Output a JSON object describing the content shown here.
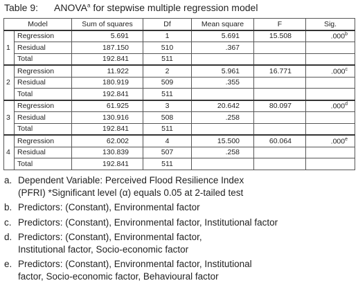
{
  "title": {
    "label": "Table 9:",
    "main": "ANOVA",
    "sup": "a",
    "rest": " for stepwise multiple regression model"
  },
  "table": {
    "header": [
      "Model",
      "Sum of squares",
      "Df",
      "Mean square",
      "F",
      "Sig."
    ],
    "models": [
      {
        "number": "1",
        "rows": [
          {
            "name": "Regression",
            "ss": "5.691",
            "df": "1",
            "ms": "5.691",
            "f": "15.508",
            "sig": ".000",
            "sig_note": "b"
          },
          {
            "name": "Residual",
            "ss": "187.150",
            "df": "510",
            "ms": ".367"
          },
          {
            "name": "Total",
            "ss": "192.841",
            "df": "511"
          }
        ]
      },
      {
        "number": "2",
        "rows": [
          {
            "name": "Regression",
            "ss": "11.922",
            "df": "2",
            "ms": "5.961",
            "f": "16.771",
            "sig": ".000",
            "sig_note": "c"
          },
          {
            "name": "Residual",
            "ss": "180.919",
            "df": "509",
            "ms": ".355"
          },
          {
            "name": "Total",
            "ss": "192.841",
            "df": "511"
          }
        ]
      },
      {
        "number": "3",
        "rows": [
          {
            "name": "Regression",
            "ss": "61.925",
            "df": "3",
            "ms": "20.642",
            "f": "80.097",
            "sig": ".000",
            "sig_note": "d"
          },
          {
            "name": "Residual",
            "ss": "130.916",
            "df": "508",
            "ms": ".258"
          },
          {
            "name": "Total",
            "ss": "192.841",
            "df": "511"
          }
        ]
      },
      {
        "number": "4",
        "rows": [
          {
            "name": "Regression",
            "ss": "62.002",
            "df": "4",
            "ms": "15.500",
            "f": "60.064",
            "sig": ".000",
            "sig_note": "e"
          },
          {
            "name": "Residual",
            "ss": "130.839",
            "df": "507",
            "ms": ".258"
          },
          {
            "name": "Total",
            "ss": "192.841",
            "df": "511"
          }
        ]
      }
    ]
  },
  "footnotes": [
    {
      "letter": "a.",
      "lines": [
        "Dependent Variable: Perceived Flood Resilience Index",
        "(PFRI) *Significant level (α) equals 0.05 at 2-tailed test"
      ]
    },
    {
      "letter": "b.",
      "lines": [
        "Predictors: (Constant), Environmental factor"
      ]
    },
    {
      "letter": "c.",
      "lines": [
        "Predictors: (Constant), Environmental factor, Institutional factor"
      ]
    },
    {
      "letter": "d.",
      "lines": [
        "Predictors: (Constant), Environmental factor,",
        "Institutional factor, Socio-economic factor"
      ]
    },
    {
      "letter": "e.",
      "lines": [
        "Predictors: (Constant), Environmental factor, Institutional",
        "factor, Socio-economic factor, Behavioural factor"
      ]
    }
  ]
}
